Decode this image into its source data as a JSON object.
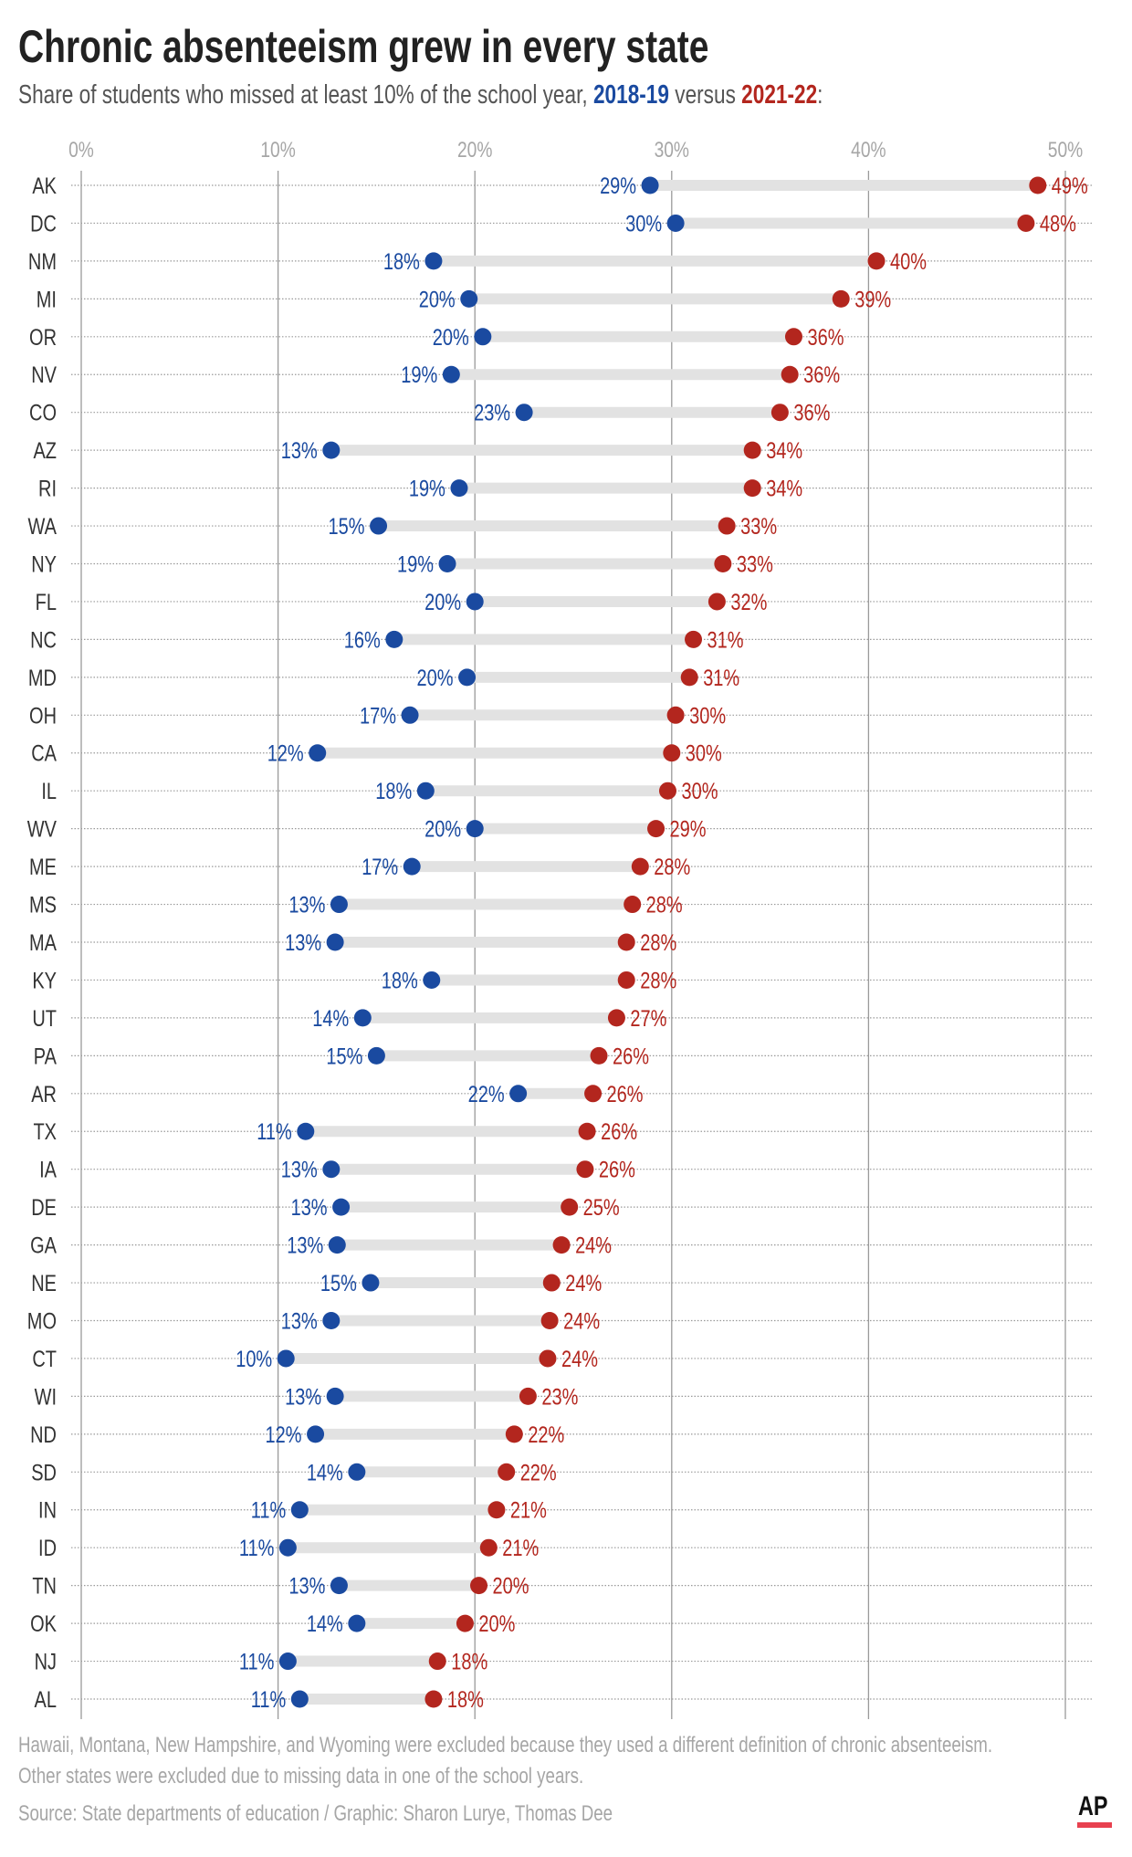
{
  "title": "Chronic absenteeism grew in every state",
  "subtitle": {
    "prefix": "Share of students who missed at least 10% of the school year, ",
    "year1": "2018-19",
    "middle": " versus ",
    "year2": "2021-22",
    "suffix": ":"
  },
  "notes": [
    "Hawaii, Montana, New Hampshire, and Wyoming were excluded because they used a different definition of chronic absenteeism.",
    "Other states were excluded due to missing data in one of the school years."
  ],
  "source": "Source: State departments of education / Graphic: Sharon Lurye, Thomas Dee",
  "logo": "AP",
  "colors": {
    "y2018": "#1a4aa0",
    "y2021": "#b3261e",
    "range_bar": "#e2e2e2",
    "grid": "#9a9a9a",
    "tick": "#a6a6a6"
  },
  "chart_data": {
    "type": "dumbbell",
    "title": "Chronic absenteeism grew in every state",
    "xlim": [
      0,
      50
    ],
    "xticks": [
      0,
      10,
      20,
      30,
      40,
      50
    ],
    "xtick_labels": [
      "0%",
      "10%",
      "20%",
      "30%",
      "40%",
      "50%"
    ],
    "grid": true,
    "series": [
      {
        "name": "2018-19",
        "key": "a"
      },
      {
        "name": "2021-22",
        "key": "b"
      }
    ],
    "rows": [
      {
        "state": "AK",
        "a": 28.9,
        "b": 48.6,
        "la": "29%",
        "lb": "49%"
      },
      {
        "state": "DC",
        "a": 30.2,
        "b": 48.0,
        "la": "30%",
        "lb": "48%"
      },
      {
        "state": "NM",
        "a": 17.9,
        "b": 40.4,
        "la": "18%",
        "lb": "40%"
      },
      {
        "state": "MI",
        "a": 19.7,
        "b": 38.6,
        "la": "20%",
        "lb": "39%"
      },
      {
        "state": "OR",
        "a": 20.4,
        "b": 36.2,
        "la": "20%",
        "lb": "36%"
      },
      {
        "state": "NV",
        "a": 18.8,
        "b": 36.0,
        "la": "19%",
        "lb": "36%"
      },
      {
        "state": "CO",
        "a": 22.5,
        "b": 35.5,
        "la": "23%",
        "lb": "36%"
      },
      {
        "state": "AZ",
        "a": 12.7,
        "b": 34.1,
        "la": "13%",
        "lb": "34%"
      },
      {
        "state": "RI",
        "a": 19.2,
        "b": 34.1,
        "la": "19%",
        "lb": "34%"
      },
      {
        "state": "WA",
        "a": 15.1,
        "b": 32.8,
        "la": "15%",
        "lb": "33%"
      },
      {
        "state": "NY",
        "a": 18.6,
        "b": 32.6,
        "la": "19%",
        "lb": "33%"
      },
      {
        "state": "FL",
        "a": 20.0,
        "b": 32.3,
        "la": "20%",
        "lb": "32%"
      },
      {
        "state": "NC",
        "a": 15.9,
        "b": 31.1,
        "la": "16%",
        "lb": "31%"
      },
      {
        "state": "MD",
        "a": 19.6,
        "b": 30.9,
        "la": "20%",
        "lb": "31%"
      },
      {
        "state": "OH",
        "a": 16.7,
        "b": 30.2,
        "la": "17%",
        "lb": "30%"
      },
      {
        "state": "CA",
        "a": 12.0,
        "b": 30.0,
        "la": "12%",
        "lb": "30%"
      },
      {
        "state": "IL",
        "a": 17.5,
        "b": 29.8,
        "la": "18%",
        "lb": "30%"
      },
      {
        "state": "WV",
        "a": 20.0,
        "b": 29.2,
        "la": "20%",
        "lb": "29%"
      },
      {
        "state": "ME",
        "a": 16.8,
        "b": 28.4,
        "la": "17%",
        "lb": "28%"
      },
      {
        "state": "MS",
        "a": 13.1,
        "b": 28.0,
        "la": "13%",
        "lb": "28%"
      },
      {
        "state": "MA",
        "a": 12.9,
        "b": 27.7,
        "la": "13%",
        "lb": "28%"
      },
      {
        "state": "KY",
        "a": 17.8,
        "b": 27.7,
        "la": "18%",
        "lb": "28%"
      },
      {
        "state": "UT",
        "a": 14.3,
        "b": 27.2,
        "la": "14%",
        "lb": "27%"
      },
      {
        "state": "PA",
        "a": 15.0,
        "b": 26.3,
        "la": "15%",
        "lb": "26%"
      },
      {
        "state": "AR",
        "a": 22.2,
        "b": 26.0,
        "la": "22%",
        "lb": "26%"
      },
      {
        "state": "TX",
        "a": 11.4,
        "b": 25.7,
        "la": "11%",
        "lb": "26%"
      },
      {
        "state": "IA",
        "a": 12.7,
        "b": 25.6,
        "la": "13%",
        "lb": "26%"
      },
      {
        "state": "DE",
        "a": 13.2,
        "b": 24.8,
        "la": "13%",
        "lb": "25%"
      },
      {
        "state": "GA",
        "a": 13.0,
        "b": 24.4,
        "la": "13%",
        "lb": "24%"
      },
      {
        "state": "NE",
        "a": 14.7,
        "b": 23.9,
        "la": "15%",
        "lb": "24%"
      },
      {
        "state": "MO",
        "a": 12.7,
        "b": 23.8,
        "la": "13%",
        "lb": "24%"
      },
      {
        "state": "CT",
        "a": 10.4,
        "b": 23.7,
        "la": "10%",
        "lb": "24%"
      },
      {
        "state": "WI",
        "a": 12.9,
        "b": 22.7,
        "la": "13%",
        "lb": "23%"
      },
      {
        "state": "ND",
        "a": 11.9,
        "b": 22.0,
        "la": "12%",
        "lb": "22%"
      },
      {
        "state": "SD",
        "a": 14.0,
        "b": 21.6,
        "la": "14%",
        "lb": "22%"
      },
      {
        "state": "IN",
        "a": 11.1,
        "b": 21.1,
        "la": "11%",
        "lb": "21%"
      },
      {
        "state": "ID",
        "a": 10.5,
        "b": 20.7,
        "la": "11%",
        "lb": "21%"
      },
      {
        "state": "TN",
        "a": 13.1,
        "b": 20.2,
        "la": "13%",
        "lb": "20%"
      },
      {
        "state": "OK",
        "a": 14.0,
        "b": 19.5,
        "la": "14%",
        "lb": "20%"
      },
      {
        "state": "NJ",
        "a": 10.5,
        "b": 18.1,
        "la": "11%",
        "lb": "18%"
      },
      {
        "state": "AL",
        "a": 11.1,
        "b": 17.9,
        "la": "11%",
        "lb": "18%"
      }
    ]
  }
}
